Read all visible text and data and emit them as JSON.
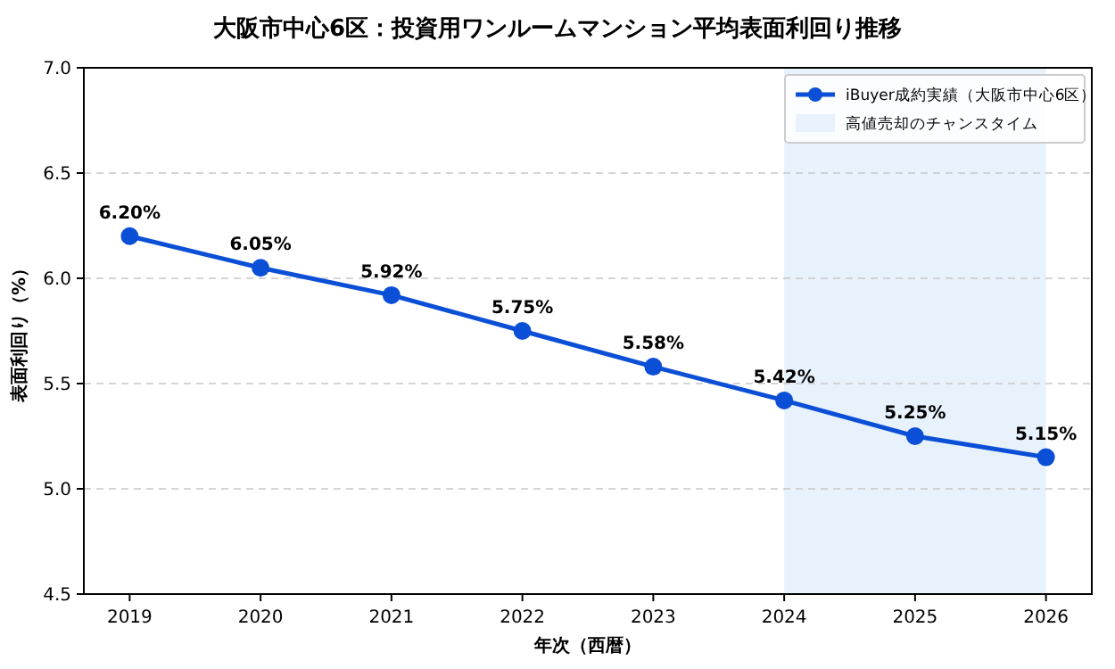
{
  "chart_data": {
    "type": "line",
    "title": "大阪市中心6区：投資用ワンルームマンション平均表面利回り推移",
    "xlabel": "年次（西暦）",
    "ylabel": "表面利回り（%）",
    "x": [
      2019,
      2020,
      2021,
      2022,
      2023,
      2024,
      2025,
      2026
    ],
    "series": [
      {
        "name": "iBuyer成約実績（大阪市中心6区）",
        "color": "#0a4fd6",
        "values": [
          6.2,
          6.05,
          5.92,
          5.75,
          5.58,
          5.42,
          5.25,
          5.15
        ],
        "value_labels": [
          "6.20%",
          "6.05%",
          "5.92%",
          "5.75%",
          "5.58%",
          "5.42%",
          "5.25%",
          "5.15%"
        ]
      }
    ],
    "xlim": [
      2018.65,
      2026.35
    ],
    "xticks": [
      2019,
      2020,
      2021,
      2022,
      2023,
      2024,
      2025,
      2026
    ],
    "ylim": [
      4.5,
      7.0
    ],
    "yticks": [
      {
        "value": 4.5,
        "label": "4.5"
      },
      {
        "value": 5.0,
        "label": "5.0"
      },
      {
        "value": 5.5,
        "label": "5.5"
      },
      {
        "value": 6.0,
        "label": "6.0"
      },
      {
        "value": 6.5,
        "label": "6.5"
      },
      {
        "value": 7.0,
        "label": "7.0"
      }
    ],
    "bands": [
      {
        "axis": "x",
        "from": 2024,
        "to": 2026,
        "label": "高値売却のチャンスタイム",
        "color": "#e8f2fd"
      }
    ],
    "grid": "y",
    "legend": "top right",
    "marker": "circle",
    "line_style": "solid"
  }
}
